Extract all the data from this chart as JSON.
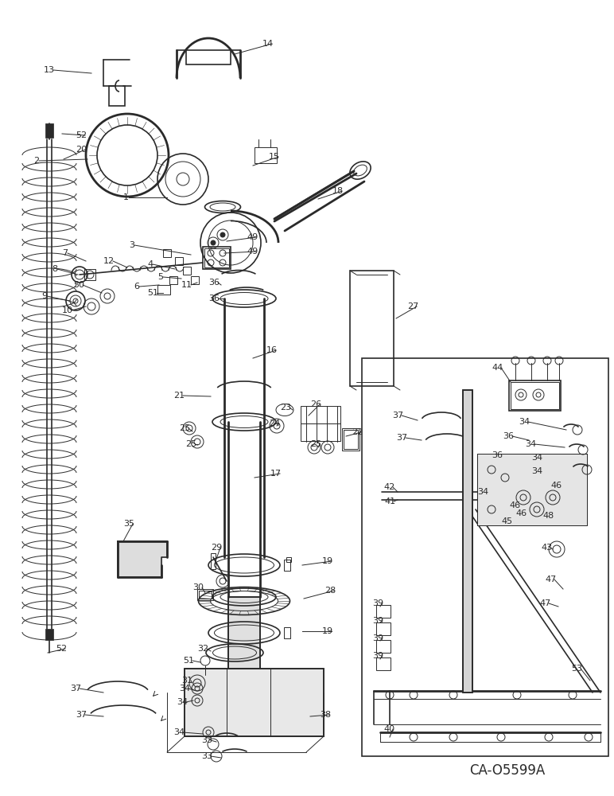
{
  "catalog_code": "CA-O5599A",
  "background_color": "#ffffff",
  "line_color": "#2a2a2a",
  "figsize": [
    7.72,
    10.0
  ],
  "dpi": 100
}
